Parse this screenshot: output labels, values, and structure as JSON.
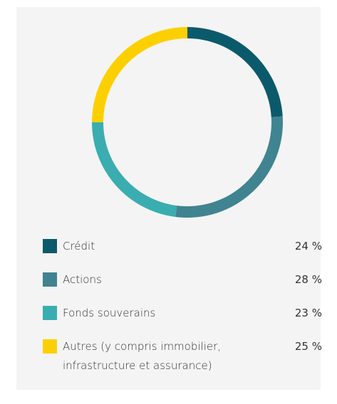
{
  "chart_data": {
    "type": "donut",
    "categories": [
      "Crédit",
      "Actions",
      "Fonds souverains",
      "Autres (y compris immobilier, infrastructure et assurance)"
    ],
    "values": [
      24,
      28,
      23,
      25
    ],
    "value_labels": [
      "24 %",
      "28 %",
      "23 %",
      "25 %"
    ],
    "colors": [
      "#0b5a6b",
      "#3f8490",
      "#3aadb0",
      "#fcd000"
    ],
    "legend": "bottom"
  }
}
